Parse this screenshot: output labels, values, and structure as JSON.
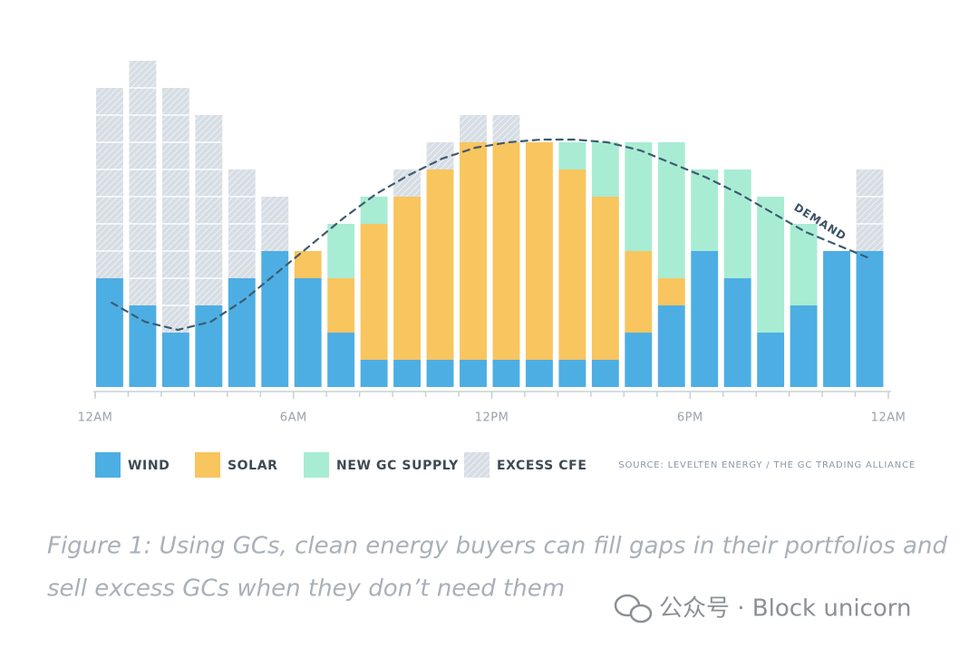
{
  "chart_data": {
    "type": "bar",
    "stacked": true,
    "x": [
      0,
      1,
      2,
      3,
      4,
      5,
      6,
      7,
      8,
      9,
      10,
      11,
      12,
      13,
      14,
      15,
      16,
      17,
      18,
      19,
      20,
      21,
      22,
      23
    ],
    "xlim": [
      0,
      24
    ],
    "xticks": [
      {
        "value": 0,
        "label": "12AM"
      },
      {
        "value": 6,
        "label": "6AM"
      },
      {
        "value": 12,
        "label": "12PM"
      },
      {
        "value": 18,
        "label": "6PM"
      },
      {
        "value": 24,
        "label": "12AM"
      }
    ],
    "ylim": [
      0,
      12
    ],
    "series": [
      {
        "name": "WIND",
        "color": "#4daee3",
        "values": [
          4,
          3,
          2,
          3,
          4,
          5,
          4,
          2,
          1,
          1,
          1,
          1,
          1,
          1,
          1,
          1,
          2,
          3,
          5,
          4,
          2,
          3,
          5,
          5
        ]
      },
      {
        "name": "SOLAR",
        "color": "#f8c55e",
        "values": [
          0,
          0,
          0,
          0,
          0,
          0,
          1,
          2,
          5,
          6,
          7,
          8,
          8,
          8,
          7,
          6,
          3,
          1,
          0,
          0,
          0,
          0,
          0,
          0
        ]
      },
      {
        "name": "NEW GC SUPPLY",
        "color": "#a8ecd4",
        "values": [
          0,
          0,
          0,
          0,
          0,
          0,
          0,
          2,
          1,
          0,
          0,
          0,
          0,
          0,
          1,
          2,
          4,
          5,
          3,
          4,
          5,
          3,
          0,
          0
        ]
      },
      {
        "name": "EXCESS CFE",
        "color": "#d7dde4",
        "pattern": "hatch",
        "values": [
          7,
          9,
          9,
          7,
          4,
          2,
          0,
          0,
          0,
          1,
          1,
          1,
          1,
          0,
          0,
          0,
          0,
          0,
          0,
          0,
          0,
          0,
          0,
          3
        ]
      }
    ],
    "demand": {
      "name": "DEMAND",
      "color": "#3f5b70",
      "values": [
        3.1,
        2.4,
        2.1,
        2.4,
        3.2,
        4.2,
        5.2,
        6.2,
        7.1,
        7.8,
        8.4,
        8.8,
        9.0,
        9.1,
        9.1,
        9.0,
        8.7,
        8.2,
        7.7,
        7.1,
        6.4,
        5.7,
        5.2,
        4.7
      ]
    },
    "source": "SOURCE: LEVELTEN ENERGY / THE GC TRADING ALLIANCE"
  },
  "caption": [
    "Figure 1: Using GCs, clean energy buyers can fill gaps in their portfolios and",
    "sell excess GCs when they don’t need them"
  ],
  "watermark": "公众号 · Block unicorn"
}
